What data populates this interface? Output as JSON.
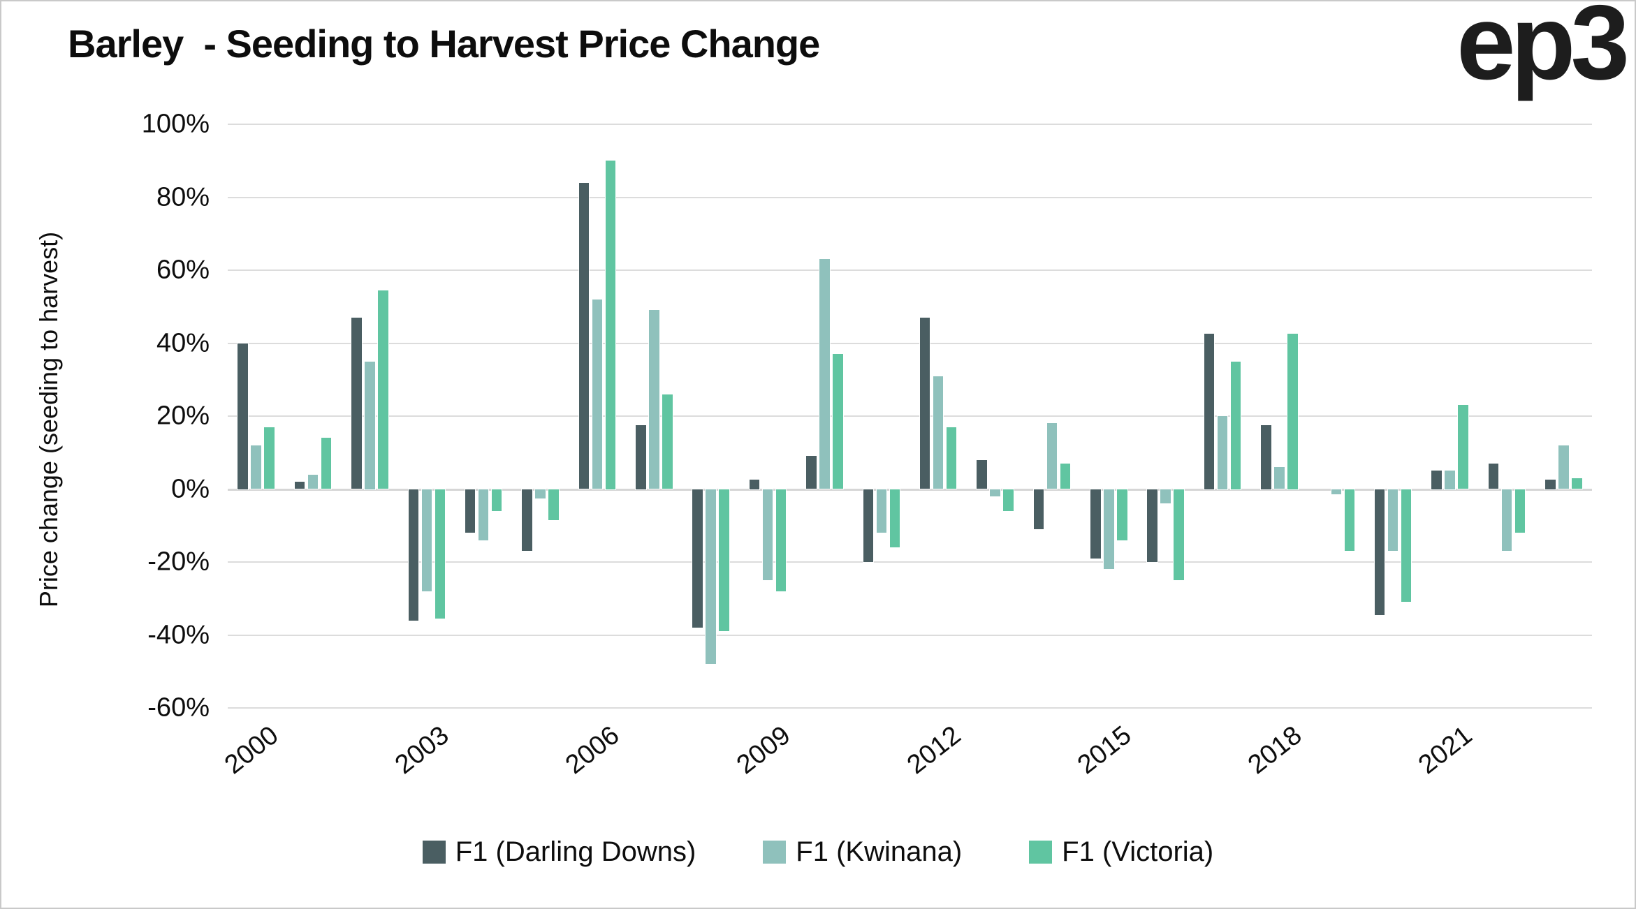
{
  "title": "Barley  - Seeding to Harvest Price Change",
  "logo_text": "ep3",
  "y_axis": {
    "label": "Price change (seeding to harvest)",
    "tick_labels": [
      "100%",
      "80%",
      "60%",
      "40%",
      "20%",
      "0%",
      "-20%",
      "-40%",
      "-60%"
    ]
  },
  "x_axis": {
    "tick_labels": [
      "2000",
      "2003",
      "2006",
      "2009",
      "2012",
      "2015",
      "2018",
      "2021"
    ],
    "tick_year_indices": [
      0,
      3,
      6,
      9,
      12,
      15,
      18,
      21
    ]
  },
  "legend": {
    "items": [
      {
        "label": "F1 (Darling Downs)",
        "color": "#4a5e62"
      },
      {
        "label": "F1 (Kwinana)",
        "color": "#8fc1bc"
      },
      {
        "label": "F1 (Victoria)",
        "color": "#60c5a1"
      }
    ]
  },
  "colors": {
    "darling_downs": "#4a5e62",
    "kwinana": "#8fc1bc",
    "victoria": "#60c5a1",
    "gridline": "#dcdcdc",
    "border": "#c9c9c9"
  },
  "chart_data": {
    "type": "bar",
    "title": "Barley  - Seeding to Harvest Price Change",
    "xlabel": "",
    "ylabel": "Price change (seeding to harvest)",
    "ylim": [
      -60,
      100
    ],
    "y_tick_step_pct": 20,
    "grid": true,
    "legend_position": "bottom",
    "x": [
      2000,
      2001,
      2002,
      2003,
      2004,
      2005,
      2006,
      2007,
      2008,
      2009,
      2010,
      2011,
      2012,
      2013,
      2014,
      2015,
      2016,
      2017,
      2018,
      2019,
      2020,
      2021,
      2022,
      2023
    ],
    "series": [
      {
        "name": "F1 (Darling Downs)",
        "color": "#4a5e62",
        "values": [
          40,
          2,
          47,
          -36,
          -12,
          -17,
          84,
          17.5,
          -38,
          2.5,
          9,
          -20,
          47,
          8,
          -11,
          -19,
          -20,
          42.5,
          17.5,
          0,
          -34.5,
          5,
          7,
          2.5
        ]
      },
      {
        "name": "F1 (Kwinana)",
        "color": "#8fc1bc",
        "values": [
          12,
          4,
          35,
          -28,
          -14,
          -2.5,
          52,
          49,
          -48,
          -25,
          63,
          -12,
          31,
          -2,
          18,
          -22,
          -4,
          20,
          6,
          -1.5,
          -17,
          5,
          -17,
          12
        ]
      },
      {
        "name": "F1 (Victoria)",
        "color": "#60c5a1",
        "values": [
          17,
          14,
          54.5,
          -35.5,
          -6,
          -8.5,
          90,
          26,
          -39,
          -28,
          37,
          -16,
          17,
          -6,
          7,
          -14,
          -25,
          35,
          42.5,
          -17,
          -31,
          23,
          -12,
          3
        ]
      }
    ]
  }
}
